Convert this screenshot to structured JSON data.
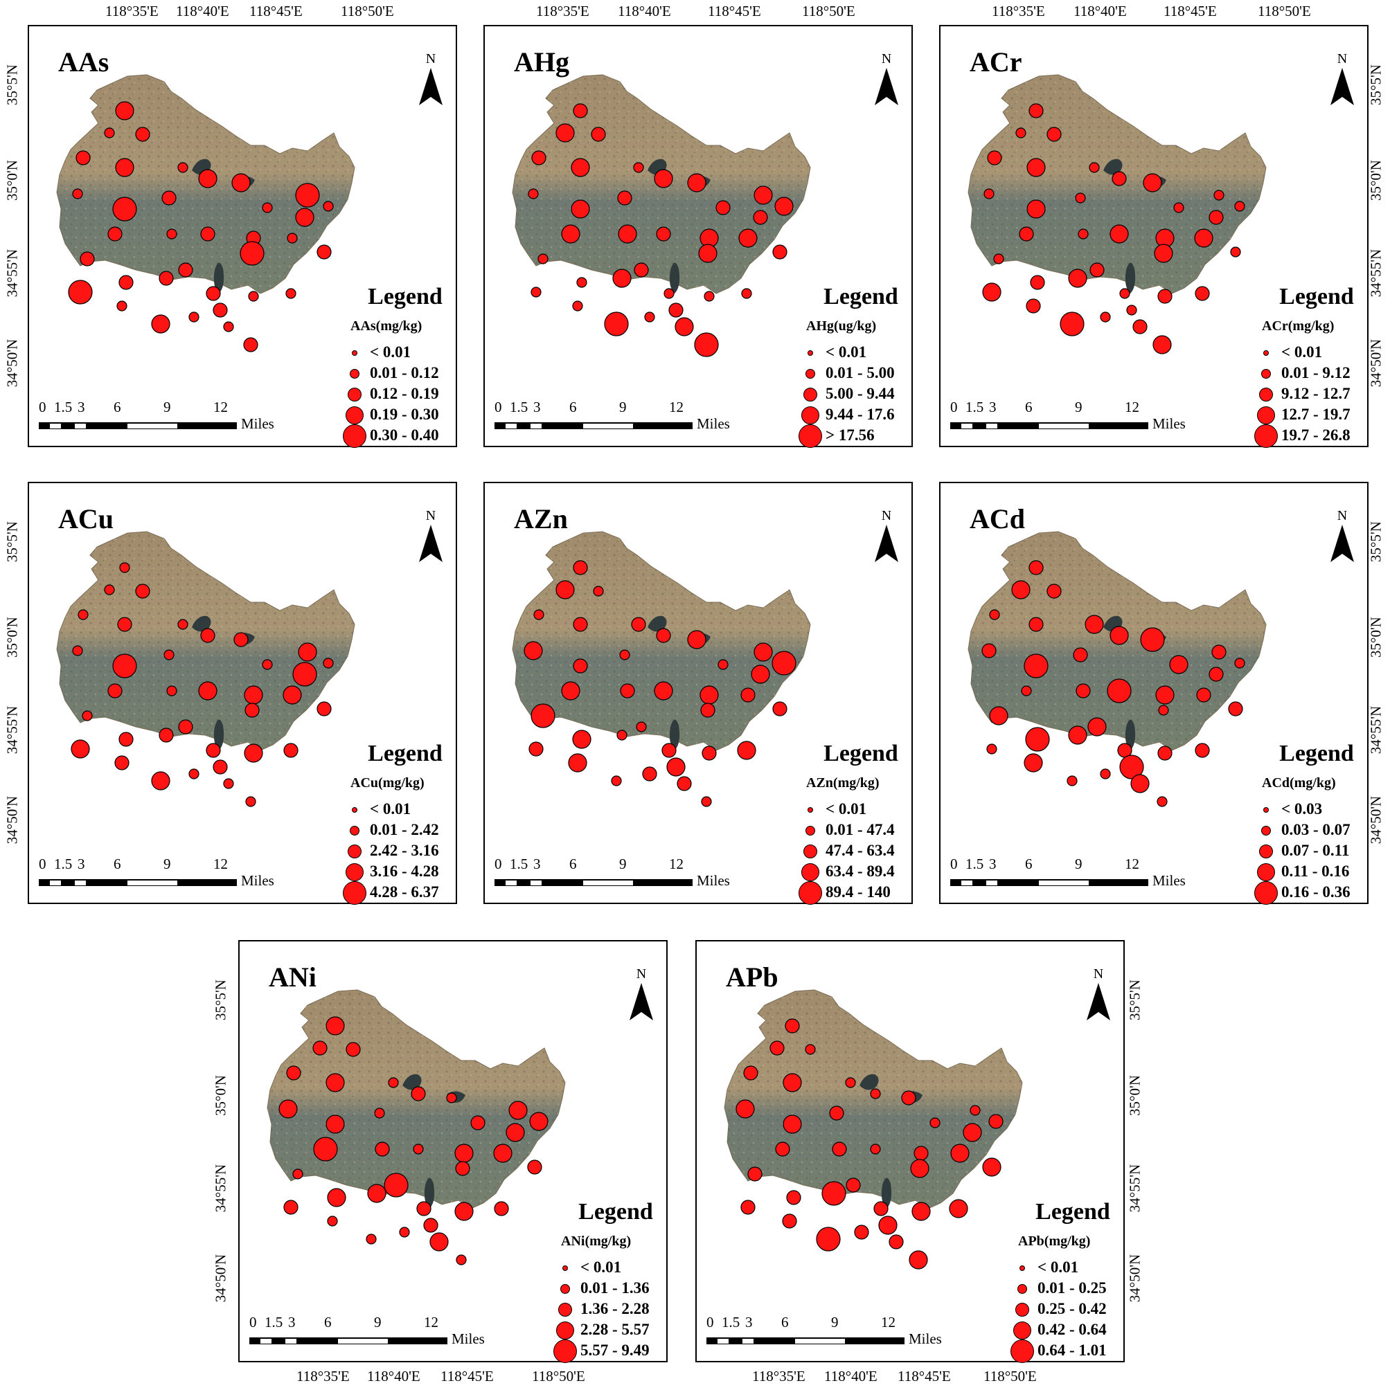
{
  "lon_labels": [
    "118°35'E",
    "118°40'E",
    "118°45'E",
    "118°50'E"
  ],
  "lat_labels": [
    "35°5'N",
    "35°0'N",
    "34°55'N",
    "34°50'N"
  ],
  "north_label": "N",
  "legend_title": "Legend",
  "scale": {
    "ticks": [
      "0",
      "1.5",
      "3",
      "6",
      "9",
      "12"
    ],
    "unit": "Miles"
  },
  "panels": [
    {
      "title": "AAs",
      "unit": "AAs(mg/kg)",
      "classes": [
        "< 0.01",
        "0.01 - 0.12",
        "0.12 - 0.19",
        "0.19 - 0.30",
        "0.30 - 0.40"
      ]
    },
    {
      "title": "AHg",
      "unit": "AHg(ug/kg)",
      "classes": [
        "< 0.01",
        "0.01 - 5.00",
        "5.00 - 9.44",
        "9.44 - 17.6",
        "> 17.56"
      ]
    },
    {
      "title": "ACr",
      "unit": "ACr(mg/kg)",
      "classes": [
        "< 0.01",
        "0.01 - 9.12",
        "9.12 - 12.7",
        "12.7 - 19.7",
        "19.7 - 26.8"
      ]
    },
    {
      "title": "ACu",
      "unit": "ACu(mg/kg)",
      "classes": [
        "< 0.01",
        "0.01 - 2.42",
        "2.42 - 3.16",
        "3.16 - 4.28",
        "4.28 - 6.37"
      ]
    },
    {
      "title": "AZn",
      "unit": "AZn(mg/kg)",
      "classes": [
        "< 0.01",
        "0.01 - 47.4",
        "47.4 - 63.4",
        "63.4 - 89.4",
        "89.4 - 140"
      ]
    },
    {
      "title": "ACd",
      "unit": "ACd(mg/kg)",
      "classes": [
        "< 0.03",
        "0.03 - 0.07",
        "0.07 - 0.11",
        "0.11 - 0.16",
        "0.16 - 0.36"
      ]
    },
    {
      "title": "ANi",
      "unit": "ANi(mg/kg)",
      "classes": [
        "< 0.01",
        "0.01 - 1.36",
        "1.36 - 2.28",
        "2.28 - 5.57",
        "5.57 - 9.49"
      ]
    },
    {
      "title": "APb",
      "unit": "APb(mg/kg)",
      "classes": [
        "< 0.01",
        "0.01 - 0.25",
        "0.25 - 0.42",
        "0.42 - 0.64",
        "0.64 - 1.01"
      ]
    }
  ],
  "colors": {
    "sample_point": "#ff1414",
    "terrain_north": "#a08c6c",
    "terrain_south": "#6f7a72",
    "frame": "#000000"
  }
}
